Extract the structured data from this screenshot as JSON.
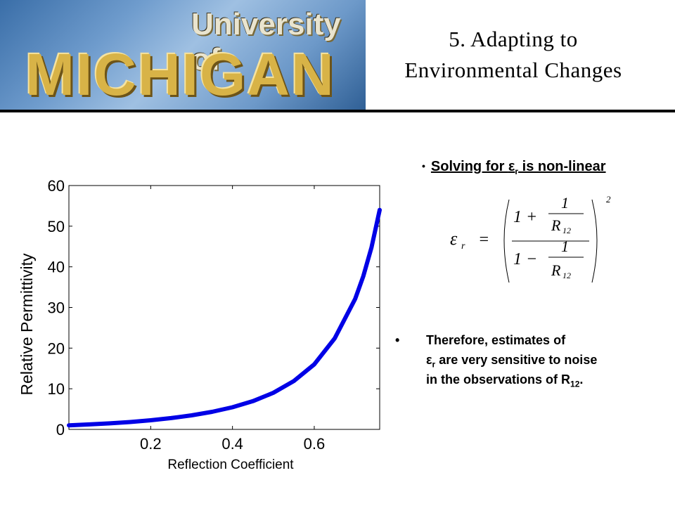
{
  "header": {
    "logo_line1": "University of",
    "logo_line2": "MICHIGAN",
    "title_line1": "5. Adapting to",
    "title_line2": "Environmental Changes"
  },
  "bullet1": {
    "prefix": "Solving for ",
    "symbol": "ε",
    "subscript": "r",
    "suffix": " is non-linear"
  },
  "formula": {
    "lhs": "ε",
    "lhs_sub": "r",
    "eq": "=",
    "num_lead": "1 +",
    "den_lead": "1 −",
    "one": "1",
    "R": "R",
    "R_sub": "12",
    "exponent": "2"
  },
  "bullet2": {
    "line1": "Therefore, estimates of",
    "symbol": "ε",
    "subscript": "r",
    "line2_rest": " are very sensitive to noise",
    "line3_prefix": "in the observations of R",
    "line3_sub": "12",
    "line3_suffix": "."
  },
  "chart_data": {
    "type": "line",
    "xlabel": "Reflection Coefficient",
    "ylabel": "Relative Permittivity",
    "xlim": [
      0.0,
      0.76
    ],
    "ylim": [
      0,
      60
    ],
    "xticks": [
      "0.2",
      "0.4",
      "0.6"
    ],
    "xtick_values": [
      0.2,
      0.4,
      0.6
    ],
    "yticks": [
      "0",
      "10",
      "20",
      "30",
      "40",
      "50",
      "60"
    ],
    "ytick_values": [
      0,
      10,
      20,
      30,
      40,
      50,
      60
    ],
    "line_color": "#0000e6",
    "series": [
      {
        "x": [
          0.0,
          0.05,
          0.1,
          0.15,
          0.2,
          0.25,
          0.3,
          0.35,
          0.4,
          0.45,
          0.5,
          0.55,
          0.6,
          0.65,
          0.7,
          0.72,
          0.74,
          0.76
        ],
        "y": [
          1.0,
          1.22,
          1.49,
          1.82,
          2.25,
          2.78,
          3.45,
          4.33,
          5.44,
          6.95,
          9.0,
          11.9,
          16.0,
          22.4,
          32.1,
          37.7,
          44.8,
          54.0
        ]
      }
    ]
  }
}
